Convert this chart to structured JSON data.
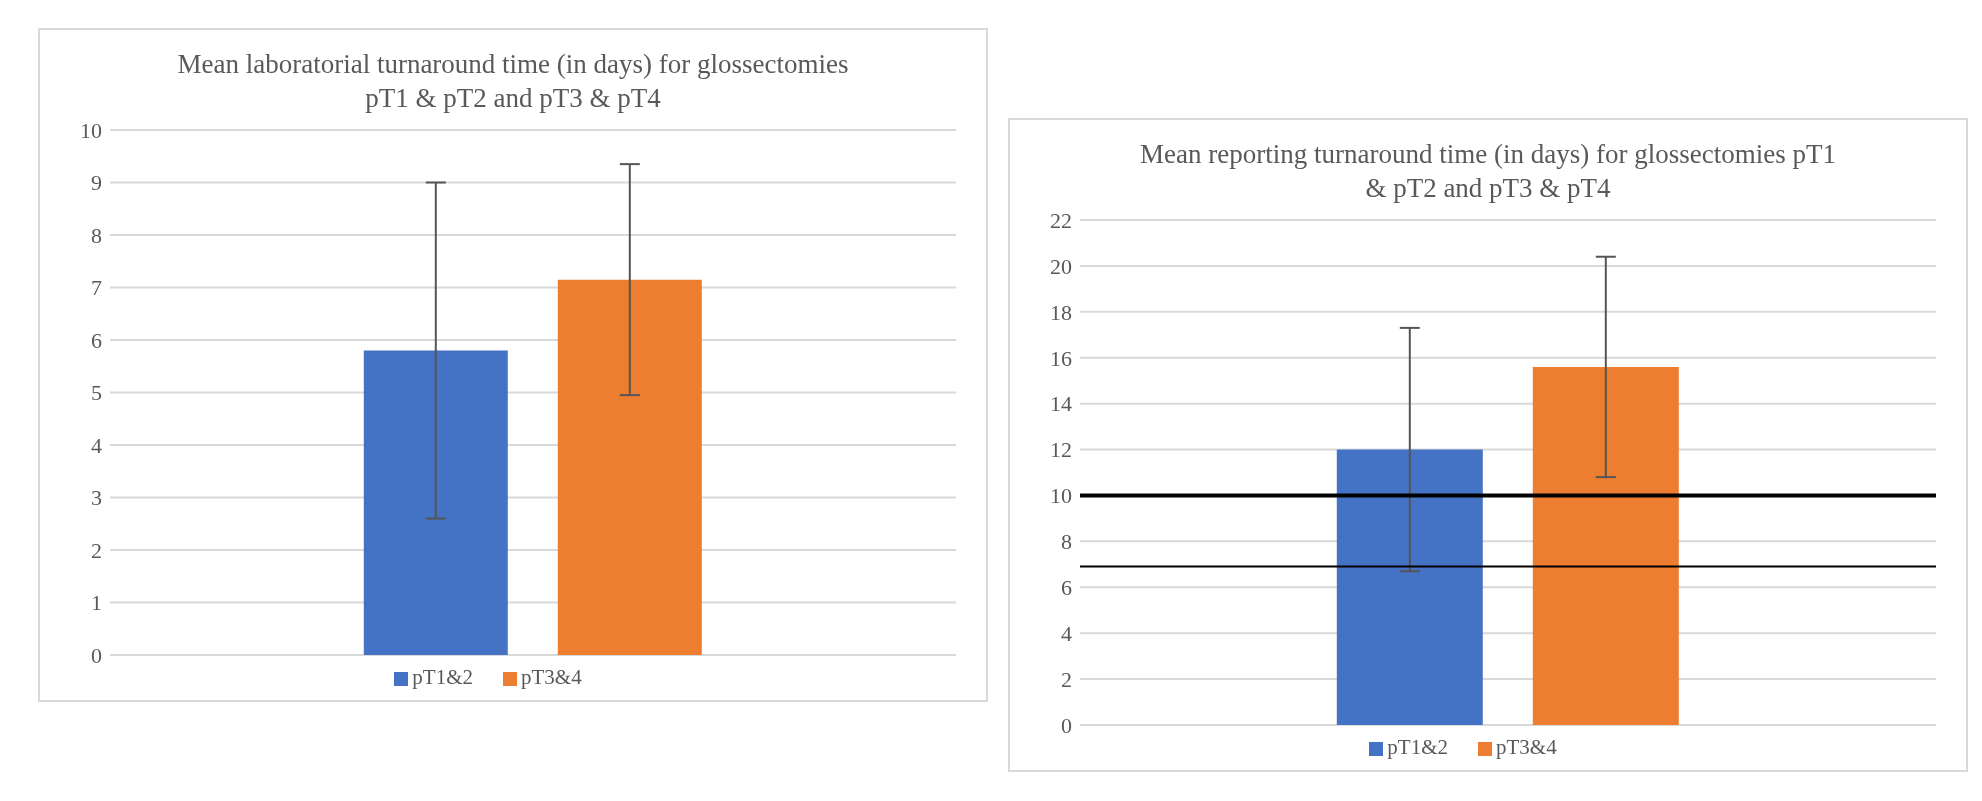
{
  "chart_data": [
    {
      "type": "bar",
      "title": "Mean laboratorial turnaround time (in days) for glossectomies pT1 & pT2 and pT3 & pT4",
      "categories": [
        null
      ],
      "series": [
        {
          "name": "pT1&2",
          "color": "#4472c4",
          "values": [
            5.8
          ],
          "errors": [
            3.2
          ]
        },
        {
          "name": "pT3&4",
          "color": "#ed7d31",
          "values": [
            7.15
          ],
          "errors": [
            2.2
          ]
        }
      ],
      "ylim": [
        0,
        10
      ],
      "yticks": [
        0,
        1,
        2,
        3,
        4,
        5,
        6,
        7,
        8,
        9,
        10
      ],
      "grid": "y",
      "legend": "bottom"
    },
    {
      "type": "bar",
      "title": "Mean reporting turnaround time (in days) for glossectomies pT1 & pT2 and pT3 & pT4",
      "categories": [
        null
      ],
      "series": [
        {
          "name": "pT1&2",
          "color": "#4472c4",
          "values": [
            12.0
          ],
          "errors": [
            5.3
          ]
        },
        {
          "name": "pT3&4",
          "color": "#ed7d31",
          "values": [
            15.6
          ],
          "errors": [
            4.8
          ]
        }
      ],
      "ylim": [
        0,
        22
      ],
      "yticks": [
        0,
        2,
        4,
        6,
        8,
        10,
        12,
        14,
        16,
        18,
        20,
        22
      ],
      "grid": "y",
      "legend": "bottom",
      "ref_lines": [
        {
          "axis": "y",
          "value": 10,
          "color": "#000000",
          "line_style": "solid"
        },
        {
          "axis": "y",
          "value": 6.9,
          "color": "#000000",
          "line_style": "solid"
        }
      ]
    }
  ]
}
